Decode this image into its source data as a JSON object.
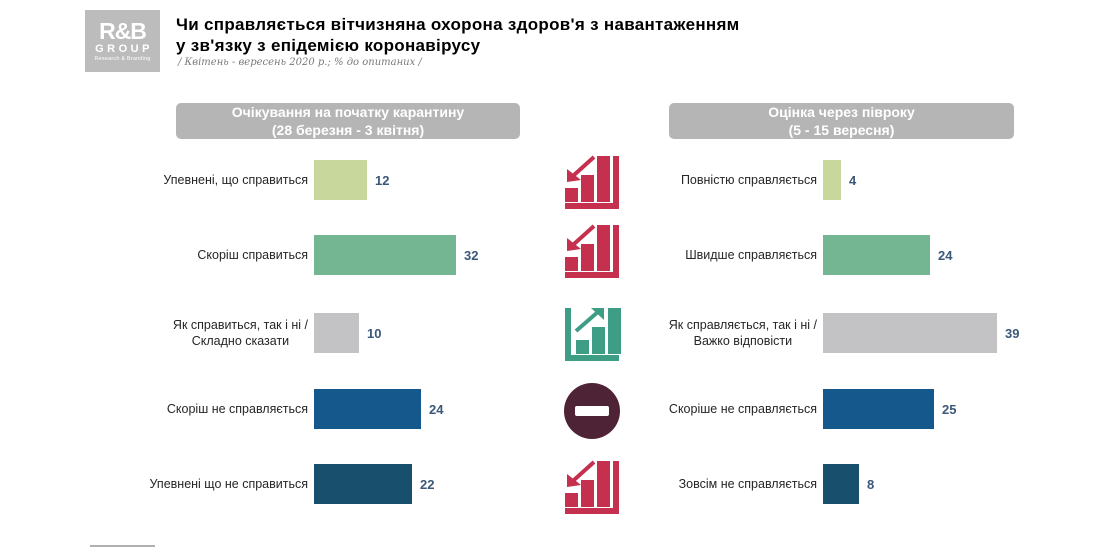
{
  "header": {
    "logo": {
      "line1": "R&B",
      "line2": "GROUP",
      "line3": "Research & Branding"
    },
    "title_line1": "Чи справляється вітчизняна охорона здоров'я з навантаженням",
    "title_line2": "у зв'язку з епідемією коронавірусу",
    "subtitle": "/ Квітень - вересень 2020 р.; % до опитаних /"
  },
  "colors": {
    "band_gray": "#b5b5b5",
    "value_text": "#3b5878",
    "light_green": "#c8d89c",
    "green": "#74b592",
    "gray_bar": "#c3c3c5",
    "blue": "#14588c",
    "dark_blue": "#184f6d",
    "icon_red": "#c4304d",
    "icon_green": "#3d9e85",
    "icon_maroon": "#4e2336"
  },
  "charts": {
    "left": {
      "header_line1": "Очікування на початку карантину",
      "header_line2": "(28 березня - 3 квітня)",
      "rows": [
        {
          "lines": [
            "Упевнені, що справиться"
          ],
          "value": 12,
          "color": "#c8d89c"
        },
        {
          "lines": [
            "Скоріш справиться"
          ],
          "value": 32,
          "color": "#74b592"
        },
        {
          "lines": [
            "Як справиться, так і ні /",
            "Складно сказати"
          ],
          "value": 10,
          "color": "#c3c3c5"
        },
        {
          "lines": [
            "Скоріш не справляється"
          ],
          "value": 24,
          "color": "#14588c"
        },
        {
          "lines": [
            "Упевнені що не справиться"
          ],
          "value": 22,
          "color": "#184f6d"
        }
      ]
    },
    "right": {
      "header_line1": "Оцінка через півроку",
      "header_line2": "(5 - 15 вересня)",
      "rows": [
        {
          "lines": [
            "Повністю справляється"
          ],
          "value": 4,
          "color": "#c8d89c"
        },
        {
          "lines": [
            "Швидше  справляється"
          ],
          "value": 24,
          "color": "#74b592"
        },
        {
          "lines": [
            "Як справляється, так і ні /",
            "Важко відповісти"
          ],
          "value": 39,
          "color": "#c3c3c5"
        },
        {
          "lines": [
            "Скоріше не справляється"
          ],
          "value": 25,
          "color": "#14588c"
        },
        {
          "lines": [
            "Зовсім не справляється"
          ],
          "value": 8,
          "color": "#184f6d"
        }
      ]
    }
  },
  "center_icons": [
    "declining-chart-icon",
    "declining-chart-icon",
    "rising-chart-icon",
    "minus-circle-icon",
    "declining-chart-icon"
  ],
  "chart_data": [
    {
      "type": "bar",
      "orientation": "horizontal",
      "title": "Очікування на початку карантину (28 березня - 3 квітня)",
      "categories": [
        "Упевнені, що справиться",
        "Скоріш справиться",
        "Як справиться, так і ні / Складно сказати",
        "Скоріш не справляється",
        "Упевнені що не справиться"
      ],
      "values": [
        12,
        32,
        10,
        24,
        22
      ],
      "unit": "% до опитаних",
      "xlim": [
        0,
        45
      ],
      "grid": false,
      "data_labels": true,
      "bar_colors": [
        "#c8d89c",
        "#74b592",
        "#c3c3c5",
        "#14588c",
        "#184f6d"
      ]
    },
    {
      "type": "bar",
      "orientation": "horizontal",
      "title": "Оцінка через півроку (5 - 15 вересня)",
      "categories": [
        "Повністю справляється",
        "Швидше справляється",
        "Як справляється, так і ні / Важко відповісти",
        "Скоріше не справляється",
        "Зовсім не справляється"
      ],
      "values": [
        4,
        24,
        39,
        25,
        8
      ],
      "unit": "% до опитаних",
      "xlim": [
        0,
        45
      ],
      "grid": false,
      "data_labels": true,
      "bar_colors": [
        "#c8d89c",
        "#74b592",
        "#c3c3c5",
        "#14588c",
        "#184f6d"
      ]
    }
  ]
}
